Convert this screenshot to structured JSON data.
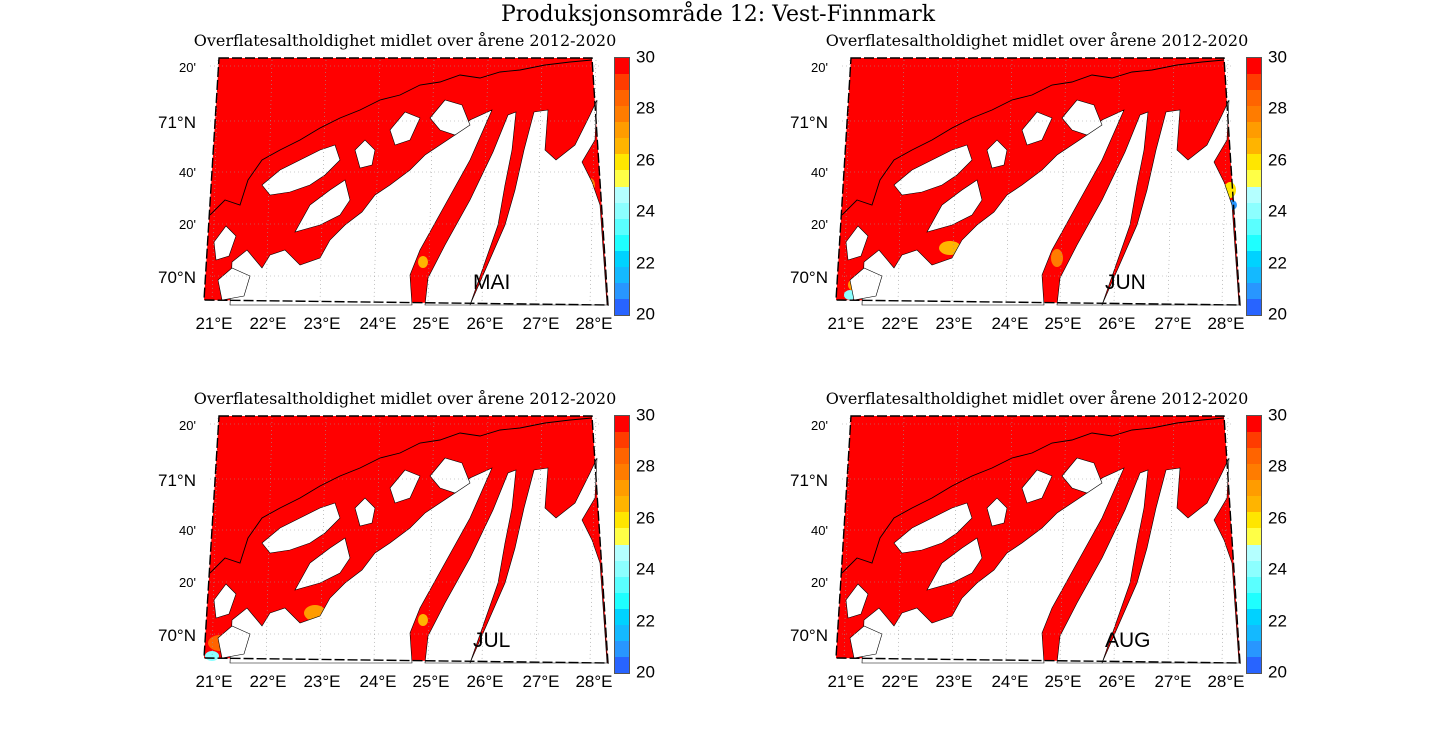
{
  "figure_title": "Produksjonsområde 12: Vest-Finnmark",
  "panel_title": "Overflatesaltholdighet midlet over årene 2012-2020",
  "lat_labels": [
    "20'",
    "71°N",
    "40'",
    "20'",
    "70°N"
  ],
  "lon_labels": [
    "21°E",
    "22°E",
    "23°E",
    "24°E",
    "25°E",
    "26°E",
    "27°E",
    "28°E"
  ],
  "colorbar": {
    "min": 20,
    "max": 30,
    "ticks": [
      "30",
      "28",
      "26",
      "24",
      "22",
      "20"
    ],
    "colors_top_to_bottom": [
      "#ff0000",
      "#ff3c00",
      "#ff6400",
      "#ff7c00",
      "#ff9c00",
      "#ffb400",
      "#ffe600",
      "#ffff46",
      "#b4ffff",
      "#8cffff",
      "#5affff",
      "#1effff",
      "#00d2ff",
      "#14b9ff",
      "#2896ff",
      "#2864ff"
    ]
  },
  "panels": [
    {
      "month": "MAI"
    },
    {
      "month": "JUN"
    },
    {
      "month": "JUL"
    },
    {
      "month": "AUG"
    }
  ],
  "colors": {
    "sea_high_salinity": "#ff0000",
    "land": "#ffffff"
  }
}
